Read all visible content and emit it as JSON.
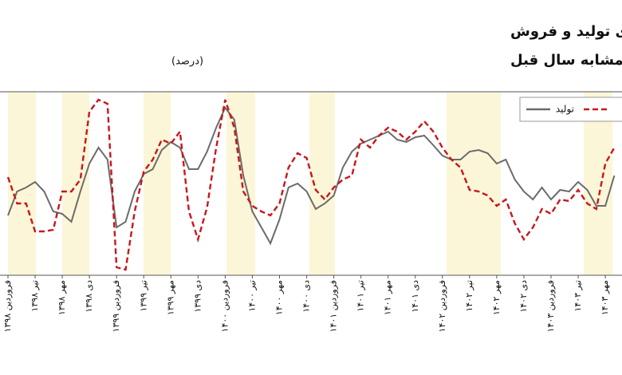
{
  "chart_data": {
    "type": "line",
    "title": "نمودار رشد میانگین متحرک سه‌ماهه شاخص‌های تولید و فروش",
    "subtitle": "فعالیت‌های صنعتی نسبت به دوره مشابه سال قبل",
    "unit_note": "(درصد)",
    "categories": [
      "فروردین ۱۳۹۸",
      null,
      null,
      "تیر ۱۳۹۸",
      null,
      null,
      "مهر ۱۳۹۸",
      null,
      null,
      "دی ۱۳۹۸",
      null,
      null,
      "فروردین ۱۳۹۹",
      null,
      null,
      "تیر ۱۳۹۹",
      null,
      null,
      "مهر ۱۳۹۹",
      null,
      null,
      "دی ۱۳۹۹",
      null,
      null,
      "فروردین ۱۴۰۰",
      null,
      null,
      "تیر ۱۴۰۰",
      null,
      null,
      "مهر ۱۴۰۰",
      null,
      null,
      "دی ۱۴۰۰",
      null,
      null,
      "فروردین ۱۴۰۱",
      null,
      null,
      "تیر ۱۴۰۱",
      null,
      null,
      "مهر ۱۴۰۱",
      null,
      null,
      "دی ۱۴۰۱",
      null,
      null,
      "فروردین ۱۴۰۲",
      null,
      null,
      "تیر ۱۴۰۲",
      null,
      null,
      "مهر ۱۴۰۲",
      null,
      null,
      "دی ۱۴۰۲",
      null,
      null,
      "فروردین ۱۴۰۳",
      null,
      null,
      "تیر ۱۴۰۳",
      null,
      null,
      "مهر ۱۴۰۳",
      null
    ],
    "series": [
      {
        "name": "تولید",
        "color": "#6b6b6b",
        "dashed": false,
        "values": [
          75,
          105,
          110,
          117,
          105,
          80,
          77,
          67,
          105,
          140,
          160,
          145,
          60,
          67,
          105,
          127,
          133,
          157,
          167,
          160,
          133,
          133,
          155,
          185,
          210,
          195,
          125,
          80,
          60,
          40,
          70,
          110,
          115,
          105,
          83,
          90,
          100,
          135,
          155,
          165,
          170,
          175,
          180,
          170,
          167,
          173,
          175,
          163,
          150,
          145,
          145,
          155,
          157,
          153,
          140,
          145,
          120,
          105,
          95,
          110,
          95,
          107,
          105,
          117,
          107,
          87,
          87,
          125
        ]
      },
      {
        "color": "#c8161d",
        "dashed": true,
        "values": [
          123,
          90,
          90,
          55,
          55,
          57,
          105,
          105,
          120,
          205,
          220,
          215,
          10,
          7,
          80,
          130,
          145,
          170,
          165,
          180,
          80,
          45,
          85,
          160,
          220,
          185,
          105,
          87,
          80,
          75,
          90,
          135,
          153,
          147,
          107,
          95,
          110,
          120,
          125,
          170,
          160,
          175,
          185,
          180,
          170,
          180,
          193,
          180,
          160,
          145,
          135,
          107,
          105,
          100,
          87,
          95,
          65,
          45,
          60,
          83,
          77,
          95,
          93,
          107,
          90,
          83,
          140,
          160
        ]
      }
    ],
    "ylim": [
      0,
      230
    ],
    "legend": "top-right"
  }
}
